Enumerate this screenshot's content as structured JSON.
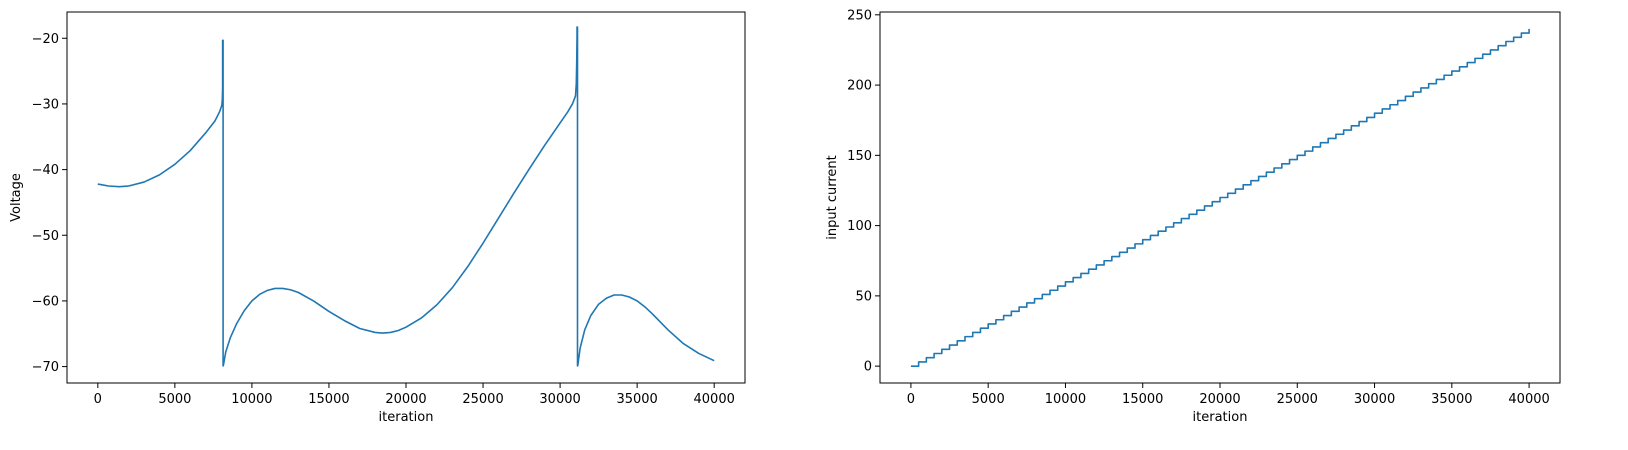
{
  "chart_data": [
    {
      "type": "line",
      "title": "",
      "xlabel": "iteration",
      "ylabel": "Voltage",
      "xlim": [
        -2000,
        42000
      ],
      "ylim": [
        -72.5,
        -16
      ],
      "xticks": [
        0,
        5000,
        10000,
        15000,
        20000,
        25000,
        30000,
        35000,
        40000
      ],
      "yticks": [
        -70,
        -60,
        -50,
        -40,
        -30,
        -20
      ],
      "x_tick_labels": [
        "0",
        "5000",
        "10000",
        "15000",
        "20000",
        "25000",
        "30000",
        "35000",
        "40000"
      ],
      "y_tick_labels": [
        "−70",
        "−60",
        "−50",
        "−40",
        "−30",
        "−20"
      ],
      "grid": false,
      "color": "#1f77b4",
      "series": [
        {
          "x": [
            0,
            700,
            1400,
            2000,
            3000,
            4000,
            5000,
            6000,
            7000,
            7600,
            7900,
            8050,
            8080,
            8100,
            8100,
            8130,
            8130,
            8150,
            8300,
            8600,
            9000,
            9500,
            10000,
            10500,
            11000,
            11500,
            12000,
            12500,
            13000,
            14000,
            15000,
            16000,
            17000,
            18000,
            18500,
            19000,
            19500,
            20000,
            21000,
            22000,
            23000,
            24000,
            25000,
            26000,
            27000,
            28000,
            29000,
            30000,
            30500,
            30800,
            31000,
            31050,
            31080,
            31100,
            31100,
            31130,
            31130,
            31150,
            31300,
            31600,
            32000,
            32500,
            33000,
            33500,
            34000,
            34500,
            35000,
            35500,
            36000,
            37000,
            38000,
            39000,
            40000
          ],
          "y": [
            -42.2,
            -42.5,
            -42.6,
            -42.5,
            -41.9,
            -40.8,
            -39.2,
            -37.1,
            -34.4,
            -32.6,
            -31.2,
            -30.2,
            -29.3,
            -27.5,
            -20.3,
            -20.3,
            -69.9,
            -69.8,
            -67.8,
            -65.6,
            -63.5,
            -61.5,
            -60.0,
            -59.0,
            -58.4,
            -58.1,
            -58.1,
            -58.3,
            -58.7,
            -60.0,
            -61.6,
            -63.0,
            -64.2,
            -64.8,
            -64.9,
            -64.8,
            -64.5,
            -64.0,
            -62.6,
            -60.6,
            -58.0,
            -54.8,
            -51.2,
            -47.4,
            -43.6,
            -39.9,
            -36.3,
            -32.9,
            -31.2,
            -30.0,
            -28.8,
            -27.0,
            -23.5,
            -19.6,
            -18.3,
            -18.3,
            -69.9,
            -69.8,
            -67.2,
            -64.4,
            -62.2,
            -60.5,
            -59.6,
            -59.1,
            -59.1,
            -59.4,
            -60.0,
            -60.9,
            -62.0,
            -64.4,
            -66.5,
            -68.0,
            -69.1
          ]
        }
      ]
    },
    {
      "type": "line",
      "title": "",
      "xlabel": "iteration",
      "ylabel": "input current",
      "xlim": [
        -2000,
        42000
      ],
      "ylim": [
        -12,
        252
      ],
      "xticks": [
        0,
        5000,
        10000,
        15000,
        20000,
        25000,
        30000,
        35000,
        40000
      ],
      "yticks": [
        0,
        50,
        100,
        150,
        200,
        250
      ],
      "x_tick_labels": [
        "0",
        "5000",
        "10000",
        "15000",
        "20000",
        "25000",
        "30000",
        "35000",
        "40000"
      ],
      "y_tick_labels": [
        "0",
        "50",
        "100",
        "150",
        "200",
        "250"
      ],
      "grid": false,
      "color": "#1f77b4",
      "step": true,
      "series": [
        {
          "step_interval": 500,
          "step_size": 3,
          "x_start": 0,
          "x_end": 40000,
          "y_start": 0,
          "y_end": 240
        }
      ]
    }
  ]
}
